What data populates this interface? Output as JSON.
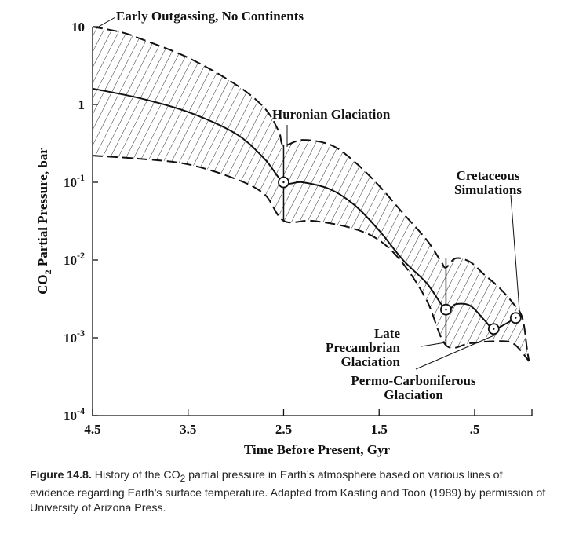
{
  "chart_data": {
    "type": "area",
    "xlabel": "Time Before Present, Gyr",
    "ylabel": "CO",
    "ylabel_sub": "2",
    "ylabel_rest": " Partial Pressure, bar",
    "x_ticks": [
      {
        "value": 4.5,
        "label": "4.5"
      },
      {
        "value": 3.5,
        "label": "3.5"
      },
      {
        "value": 2.5,
        "label": "2.5"
      },
      {
        "value": 1.5,
        "label": "1.5"
      },
      {
        "value": 0.5,
        "label": ".5"
      }
    ],
    "y_ticks": [
      {
        "value": 10,
        "base": "10",
        "exp": ""
      },
      {
        "value": 1,
        "base": "1",
        "exp": ""
      },
      {
        "value": 0.1,
        "base": "10",
        "exp": "-1"
      },
      {
        "value": 0.01,
        "base": "10",
        "exp": "-2"
      },
      {
        "value": 0.001,
        "base": "10",
        "exp": "-3"
      },
      {
        "value": 0.0001,
        "base": "10",
        "exp": "-4"
      }
    ],
    "xlim": [
      4.5,
      -0.1
    ],
    "ylim": [
      0.0001,
      10
    ],
    "y_scale": "log",
    "upper_bound": [
      {
        "x": 4.5,
        "y": 10
      },
      {
        "x": 4.2,
        "y": 8.5
      },
      {
        "x": 4.0,
        "y": 7
      },
      {
        "x": 3.5,
        "y": 4
      },
      {
        "x": 3.0,
        "y": 1.8
      },
      {
        "x": 2.7,
        "y": 0.9
      },
      {
        "x": 2.55,
        "y": 0.45
      },
      {
        "x": 2.5,
        "y": 0.3
      },
      {
        "x": 2.3,
        "y": 0.35
      },
      {
        "x": 2.0,
        "y": 0.3
      },
      {
        "x": 1.75,
        "y": 0.18
      },
      {
        "x": 1.5,
        "y": 0.09
      },
      {
        "x": 1.25,
        "y": 0.04
      },
      {
        "x": 1.0,
        "y": 0.018
      },
      {
        "x": 0.85,
        "y": 0.0095
      },
      {
        "x": 0.8,
        "y": 0.008
      },
      {
        "x": 0.7,
        "y": 0.0105
      },
      {
        "x": 0.55,
        "y": 0.0095
      },
      {
        "x": 0.4,
        "y": 0.0065
      },
      {
        "x": 0.25,
        "y": 0.0045
      },
      {
        "x": 0.1,
        "y": 0.0028
      },
      {
        "x": 0.0,
        "y": 0.0018
      },
      {
        "x": -0.05,
        "y": 0.0007
      },
      {
        "x": -0.07,
        "y": 0.0005
      }
    ],
    "lower_bound": [
      {
        "x": 4.5,
        "y": 0.22
      },
      {
        "x": 4.0,
        "y": 0.2
      },
      {
        "x": 3.5,
        "y": 0.17
      },
      {
        "x": 3.0,
        "y": 0.11
      },
      {
        "x": 2.7,
        "y": 0.07
      },
      {
        "x": 2.5,
        "y": 0.032
      },
      {
        "x": 2.2,
        "y": 0.032
      },
      {
        "x": 1.8,
        "y": 0.026
      },
      {
        "x": 1.5,
        "y": 0.018
      },
      {
        "x": 1.25,
        "y": 0.009
      },
      {
        "x": 1.0,
        "y": 0.003
      },
      {
        "x": 0.8,
        "y": 0.0008
      },
      {
        "x": 0.55,
        "y": 0.00085
      },
      {
        "x": 0.3,
        "y": 0.0009
      },
      {
        "x": 0.1,
        "y": 0.00085
      },
      {
        "x": -0.07,
        "y": 0.0005
      }
    ],
    "central_curve": [
      {
        "x": 4.5,
        "y": 1.6
      },
      {
        "x": 4.0,
        "y": 1.2
      },
      {
        "x": 3.5,
        "y": 0.8
      },
      {
        "x": 3.0,
        "y": 0.42
      },
      {
        "x": 2.7,
        "y": 0.2
      },
      {
        "x": 2.5,
        "y": 0.1
      },
      {
        "x": 2.3,
        "y": 0.1
      },
      {
        "x": 2.0,
        "y": 0.08
      },
      {
        "x": 1.75,
        "y": 0.05
      },
      {
        "x": 1.5,
        "y": 0.024
      },
      {
        "x": 1.25,
        "y": 0.01
      },
      {
        "x": 1.0,
        "y": 0.005
      },
      {
        "x": 0.8,
        "y": 0.0023
      },
      {
        "x": 0.7,
        "y": 0.0027
      },
      {
        "x": 0.55,
        "y": 0.0026
      },
      {
        "x": 0.4,
        "y": 0.0017
      },
      {
        "x": 0.3,
        "y": 0.0013
      },
      {
        "x": 0.18,
        "y": 0.0015
      },
      {
        "x": 0.07,
        "y": 0.0018
      }
    ],
    "vertical_markers": [
      {
        "x": 2.5,
        "y_low": 0.032,
        "y_high": 0.3
      },
      {
        "x": 0.8,
        "y_low": 0.0008,
        "y_high": 0.0105
      }
    ],
    "points": [
      {
        "x": 2.5,
        "y": 0.1
      },
      {
        "x": 0.8,
        "y": 0.0023
      },
      {
        "x": 0.3,
        "y": 0.0013
      },
      {
        "x": 0.07,
        "y": 0.0018
      }
    ],
    "annotations": [
      {
        "lines": [
          "Early Outgassing, No Continents"
        ],
        "anchor": "start"
      },
      {
        "lines": [
          "Huronian Glaciation"
        ],
        "anchor": "start"
      },
      {
        "lines": [
          "Cretaceous",
          "Simulations"
        ],
        "anchor": "middle"
      },
      {
        "lines": [
          "Late",
          "Precambrian",
          "Glaciation"
        ],
        "anchor": "end"
      },
      {
        "lines": [
          "Permo-Carboniferous",
          "Glaciation"
        ],
        "anchor": "middle"
      }
    ]
  },
  "caption": {
    "figure_label": "Figure 14.8.",
    "text_1": " History of the CO",
    "text_sub": "2",
    "text_2": " partial pressure in Earth’s atmosphere based on various lines of evidence regarding Earth’s surface temperature. Adapted from Kasting and Toon (1989) by permission of University of Arizona Press."
  }
}
